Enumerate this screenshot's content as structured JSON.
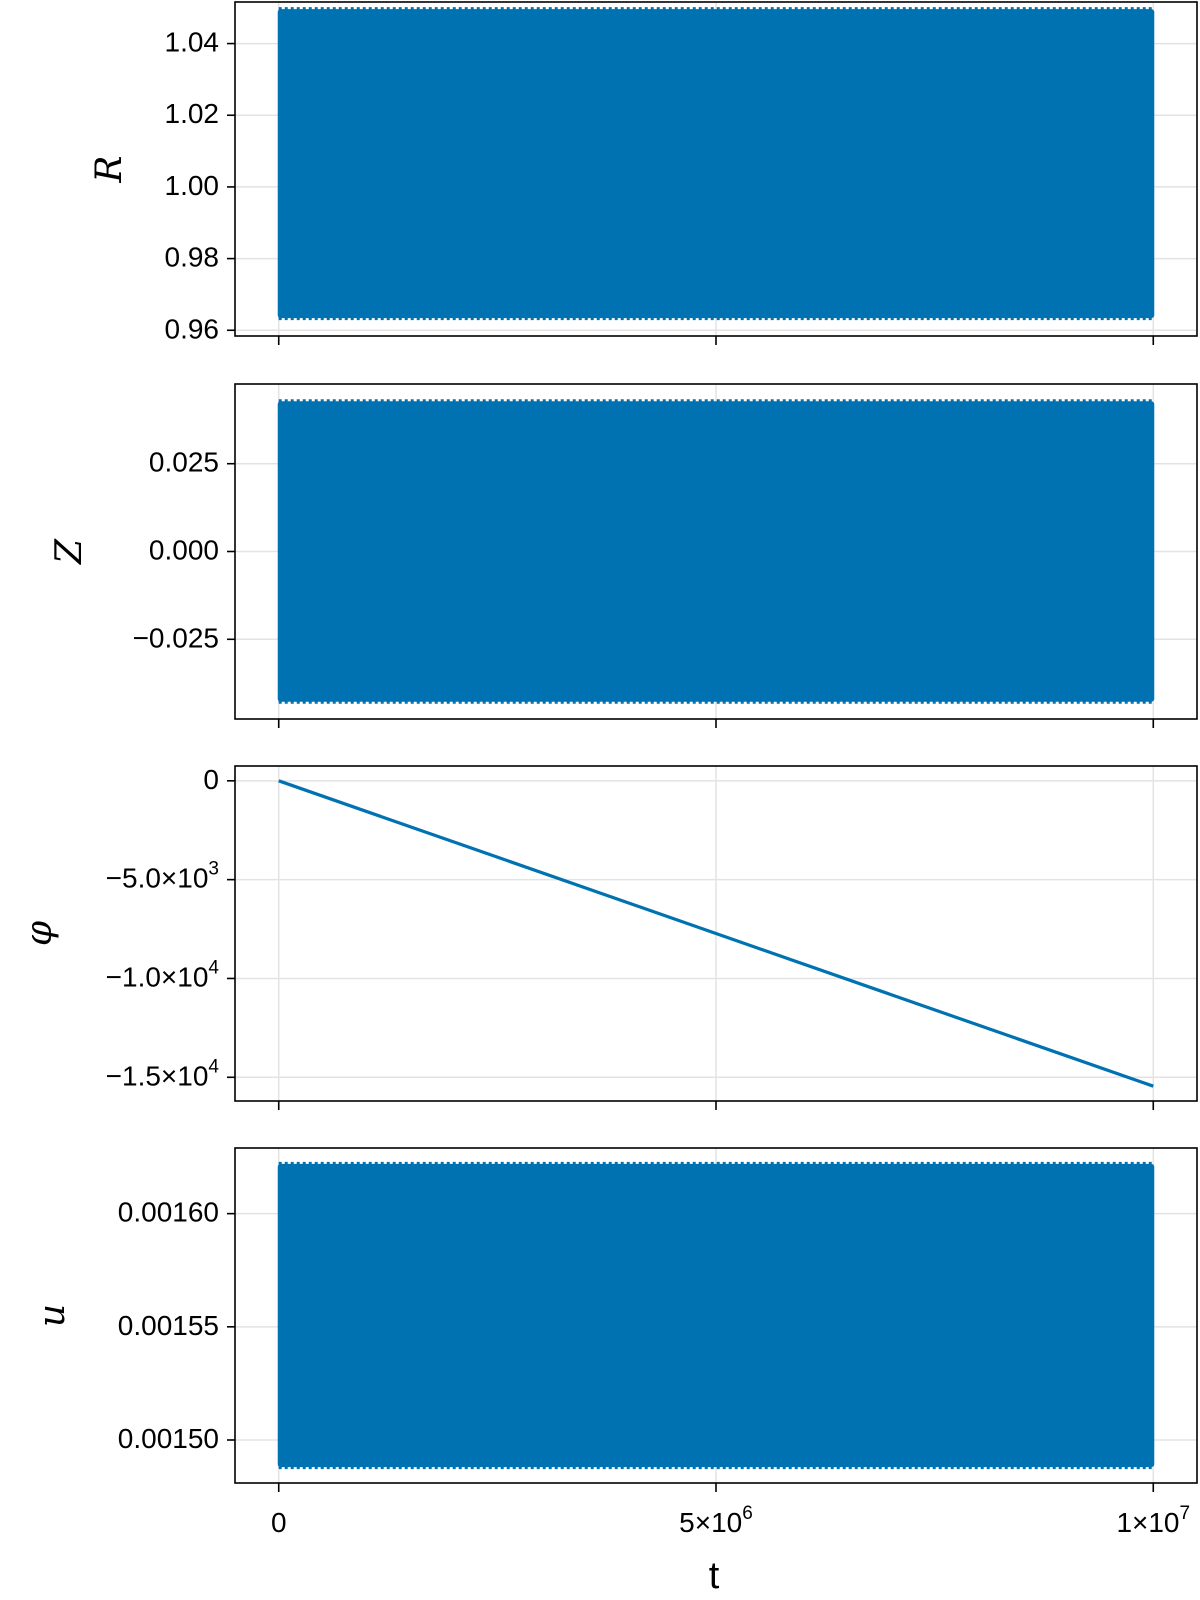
{
  "chart_data": [
    {
      "type": "line",
      "ylabel": "R",
      "xlim": [
        -500000,
        10500000
      ],
      "ylim": [
        0.9584,
        1.0516
      ],
      "yticks": [
        {
          "value": 0.96,
          "label": "0.96"
        },
        {
          "value": 0.98,
          "label": "0.98"
        },
        {
          "value": 1.0,
          "label": "1.00"
        },
        {
          "value": 1.02,
          "label": "1.02"
        },
        {
          "value": 1.04,
          "label": "1.04"
        }
      ],
      "style": "band",
      "x_range": [
        0,
        10000000
      ],
      "y_min": 0.9634,
      "y_max": 1.0496,
      "color": "#0072b2",
      "grid": true
    },
    {
      "type": "line",
      "ylabel": "Z",
      "xlim": [
        -500000,
        10500000
      ],
      "ylim": [
        -0.0477,
        0.0477
      ],
      "yticks": [
        {
          "value": -0.025,
          "label": "−0.025"
        },
        {
          "value": 0.0,
          "label": "0.000"
        },
        {
          "value": 0.025,
          "label": "0.025"
        }
      ],
      "style": "band",
      "x_range": [
        0,
        10000000
      ],
      "y_min": -0.0428,
      "y_max": 0.0428,
      "color": "#0072b2",
      "grid": true
    },
    {
      "type": "line",
      "ylabel": "φ",
      "xlim": [
        -500000,
        10500000
      ],
      "ylim": [
        -16200,
        750
      ],
      "yticks": [
        {
          "value": -15000,
          "label": "−1.5×10",
          "exp": "4"
        },
        {
          "value": -10000,
          "label": "−1.0×10",
          "exp": "4"
        },
        {
          "value": -5000,
          "label": "−5.0×10",
          "exp": "3"
        },
        {
          "value": 0,
          "label": "0",
          "exp": ""
        }
      ],
      "style": "line",
      "x": [
        0,
        10000000
      ],
      "y": [
        0,
        -15450
      ],
      "color": "#0072b2",
      "grid": true
    },
    {
      "type": "line",
      "ylabel": "u",
      "xlabel": "t",
      "xlim": [
        -500000,
        10500000
      ],
      "ylim": [
        0.001481,
        0.001629
      ],
      "yticks": [
        {
          "value": 0.0015,
          "label": "0.00150"
        },
        {
          "value": 0.00155,
          "label": "0.00155"
        },
        {
          "value": 0.0016,
          "label": "0.00160"
        }
      ],
      "xticks": [
        {
          "value": 0,
          "label": "0",
          "exp": ""
        },
        {
          "value": 5000000,
          "label": "5×10",
          "exp": "6"
        },
        {
          "value": 10000000,
          "label": "1×10",
          "exp": "7"
        }
      ],
      "style": "band",
      "x_range": [
        0,
        10000000
      ],
      "y_min": 0.001488,
      "y_max": 0.001622,
      "color": "#0072b2",
      "grid": true
    }
  ]
}
